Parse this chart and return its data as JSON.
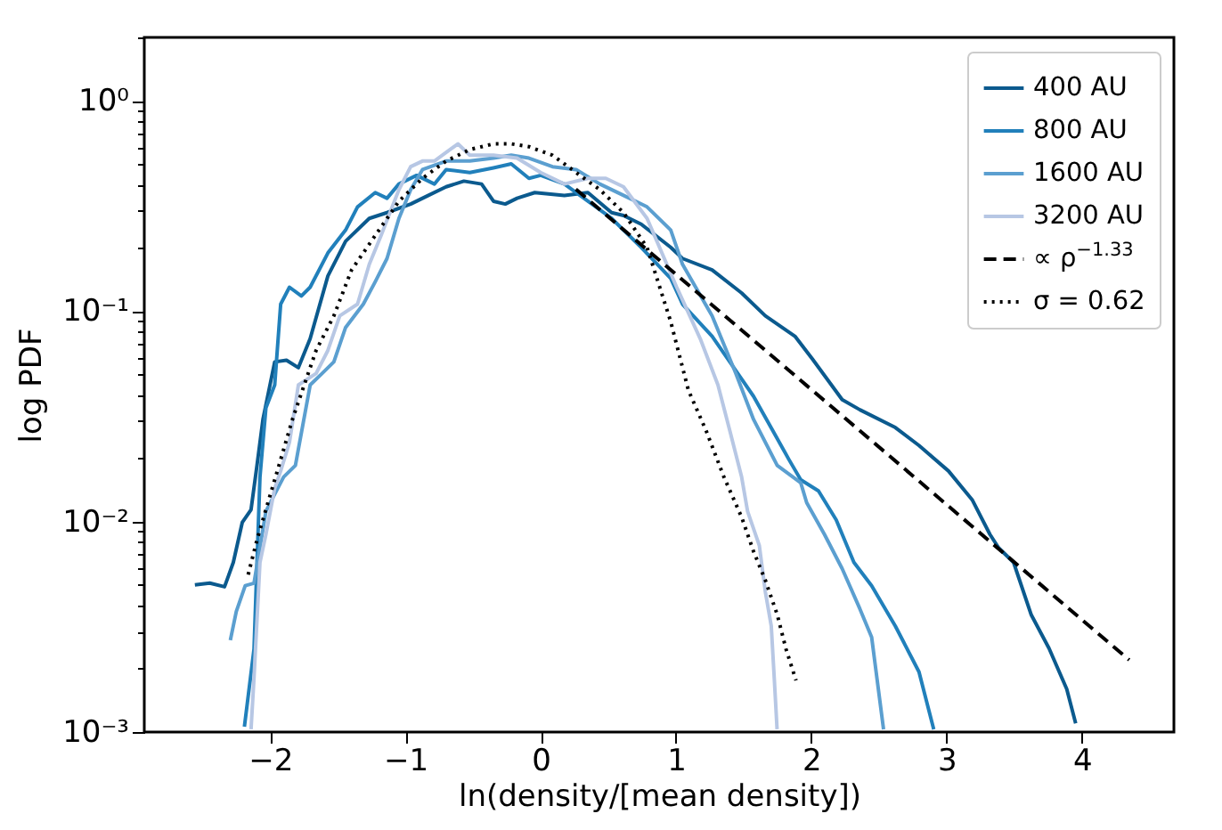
{
  "chart_data": {
    "type": "line",
    "xlabel": "ln(density/[mean density])",
    "ylabel": "log PDF",
    "log": "y",
    "legend": "top right",
    "grid": false,
    "xlim": [
      -2.93,
      4.68
    ],
    "xticks": [
      {
        "value": -2,
        "label": "−2"
      },
      {
        "value": -1,
        "label": "−1"
      },
      0,
      1,
      2,
      3,
      4
    ],
    "ylim": [
      0.001,
      2
    ],
    "yticks": [
      {
        "value": 0.001,
        "label": "10⁻³"
      },
      {
        "value": 0.002,
        "label": null
      },
      {
        "value": 0.003,
        "label": null
      },
      {
        "value": 0.004,
        "label": null
      },
      {
        "value": 0.005,
        "label": null
      },
      {
        "value": 0.006,
        "label": null
      },
      {
        "value": 0.007,
        "label": null
      },
      {
        "value": 0.008,
        "label": null
      },
      {
        "value": 0.009,
        "label": null
      },
      {
        "value": 0.01,
        "label": "10⁻²"
      },
      {
        "value": 0.02,
        "label": null
      },
      {
        "value": 0.03,
        "label": null
      },
      {
        "value": 0.04,
        "label": null
      },
      {
        "value": 0.05,
        "label": null
      },
      {
        "value": 0.06,
        "label": null
      },
      {
        "value": 0.07,
        "label": null
      },
      {
        "value": 0.08,
        "label": null
      },
      {
        "value": 0.09,
        "label": null
      },
      {
        "value": 0.1,
        "label": "10⁻¹"
      },
      {
        "value": 0.2,
        "label": null
      },
      {
        "value": 0.3,
        "label": null
      },
      {
        "value": 0.4,
        "label": null
      },
      {
        "value": 0.5,
        "label": null
      },
      {
        "value": 0.6,
        "label": null
      },
      {
        "value": 0.7,
        "label": null
      },
      {
        "value": 0.8,
        "label": null
      },
      {
        "value": 0.9,
        "label": null
      },
      {
        "value": 1,
        "label": "10⁰"
      },
      {
        "value": 2,
        "label": null
      }
    ],
    "series": [
      {
        "name": "400 AU",
        "color": "#0b5a8e",
        "line_style": "solid",
        "x": [
          -2.556,
          -2.446,
          -2.337,
          -2.272,
          -2.206,
          -2.141,
          -2.097,
          -2.053,
          -1.966,
          -1.879,
          -1.791,
          -1.704,
          -1.573,
          -1.442,
          -1.267,
          -1.136,
          -0.961,
          -0.83,
          -0.699,
          -0.568,
          -0.437,
          -0.349,
          -0.262,
          -0.175,
          -0.044,
          0.175,
          0.349,
          0.524,
          0.612,
          0.743,
          0.961,
          1.048,
          1.267,
          1.485,
          1.66,
          1.879,
          2.01,
          2.228,
          2.359,
          2.621,
          2.796,
          3.014,
          3.189,
          3.32,
          3.385,
          3.495,
          3.626,
          3.757,
          3.888,
          3.954
        ],
        "values": [
          0.005,
          0.0051,
          0.0049,
          0.0064,
          0.0099,
          0.0114,
          0.0185,
          0.0306,
          0.0574,
          0.0585,
          0.0539,
          0.074,
          0.147,
          0.215,
          0.276,
          0.294,
          0.323,
          0.355,
          0.39,
          0.415,
          0.402,
          0.333,
          0.323,
          0.344,
          0.366,
          0.355,
          0.366,
          0.294,
          0.285,
          0.259,
          0.201,
          0.178,
          0.157,
          0.122,
          0.095,
          0.076,
          0.059,
          0.038,
          0.034,
          0.028,
          0.023,
          0.0174,
          0.0127,
          0.0087,
          0.0075,
          0.0064,
          0.0036,
          0.0025,
          0.0016,
          0.0011
        ]
      },
      {
        "name": "800 AU",
        "color": "#2180bb",
        "line_style": "solid",
        "x": [
          -2.19,
          -2.119,
          -2.075,
          -2.031,
          -1.966,
          -1.922,
          -1.857,
          -1.769,
          -1.704,
          -1.573,
          -1.442,
          -1.354,
          -1.223,
          -1.136,
          -1.048,
          -0.917,
          -0.786,
          -0.699,
          -0.524,
          -0.349,
          -0.218,
          -0.087,
          0,
          0.175,
          0.349,
          0.524,
          0.743,
          0.961,
          1.048,
          1.267,
          1.442,
          1.573,
          1.704,
          1.835,
          1.922,
          2.053,
          2.184,
          2.315,
          2.446,
          2.621,
          2.796,
          2.905
        ],
        "values": [
          0.00106,
          0.00248,
          0.0163,
          0.0347,
          0.0446,
          0.108,
          0.13,
          0.118,
          0.13,
          0.189,
          0.243,
          0.313,
          0.366,
          0.344,
          0.402,
          0.442,
          0.402,
          0.471,
          0.456,
          0.48,
          0.501,
          0.428,
          0.442,
          0.402,
          0.333,
          0.276,
          0.201,
          0.143,
          0.108,
          0.076,
          0.0522,
          0.0394,
          0.0279,
          0.0197,
          0.0158,
          0.014,
          0.0102,
          0.0064,
          0.00496,
          0.00319,
          0.00193,
          0.00103
        ]
      },
      {
        "name": "1600 AU",
        "color": "#5b9fd0",
        "line_style": "solid",
        "x": [
          -2.294,
          -2.25,
          -2.184,
          -2.119,
          -2.031,
          -1.966,
          -1.9,
          -1.813,
          -1.704,
          -1.616,
          -1.529,
          -1.442,
          -1.311,
          -1.223,
          -1.136,
          -1.048,
          -0.961,
          -0.874,
          -0.699,
          -0.524,
          -0.349,
          -0.218,
          -0.087,
          0.087,
          0.262,
          0.437,
          0.612,
          0.786,
          0.961,
          1.048,
          1.267,
          1.442,
          1.573,
          1.748,
          1.922,
          1.966,
          2.097,
          2.228,
          2.359,
          2.446,
          2.534
        ],
        "values": [
          0.00273,
          0.00374,
          0.00496,
          0.0051,
          0.0112,
          0.0135,
          0.0163,
          0.0185,
          0.0446,
          0.0506,
          0.0574,
          0.0837,
          0.108,
          0.138,
          0.178,
          0.276,
          0.378,
          0.471,
          0.517,
          0.517,
          0.534,
          0.551,
          0.534,
          0.486,
          0.471,
          0.402,
          0.355,
          0.313,
          0.243,
          0.167,
          0.095,
          0.0506,
          0.0306,
          0.0185,
          0.0153,
          0.0123,
          0.0087,
          0.00598,
          0.00385,
          0.00282,
          0.00103
        ]
      },
      {
        "name": "3200 AU",
        "color": "#b7c7e4",
        "line_style": "solid",
        "x": [
          -2.141,
          -2.119,
          -2.075,
          -2.031,
          -1.966,
          -1.922,
          -1.857,
          -1.791,
          -1.66,
          -1.573,
          -1.485,
          -1.354,
          -1.267,
          -1.18,
          -1.048,
          -0.961,
          -0.874,
          -0.786,
          -0.699,
          -0.612,
          -0.524,
          -0.349,
          -0.175,
          0,
          0.175,
          0.349,
          0.481,
          0.612,
          0.786,
          1.005,
          1.179,
          1.31,
          1.398,
          1.485,
          1.529,
          1.616,
          1.66,
          1.704,
          1.726,
          1.747
        ],
        "values": [
          0.00103,
          0.00181,
          0.0064,
          0.0087,
          0.0144,
          0.0174,
          0.0238,
          0.0446,
          0.0506,
          0.0651,
          0.095,
          0.108,
          0.167,
          0.229,
          0.378,
          0.486,
          0.517,
          0.517,
          0.568,
          0.624,
          0.551,
          0.551,
          0.534,
          0.456,
          0.402,
          0.428,
          0.428,
          0.39,
          0.276,
          0.13,
          0.074,
          0.0446,
          0.027,
          0.0163,
          0.0112,
          0.00769,
          0.00465,
          0.00319,
          0.00181,
          0.00103
        ]
      },
      {
        "name": "∝ ρ$^{−1.33}$",
        "color": "#000000",
        "line_style": "dashed",
        "x": [
          0.26,
          4.35
        ],
        "values": [
          0.38,
          0.0022
        ]
      },
      {
        "name": "σ = 0.62",
        "color": "#000000",
        "line_style": "dotted",
        "x": [
          -2.162,
          -2.097,
          -2.01,
          -1.922,
          -1.835,
          -1.748,
          -1.66,
          -1.529,
          -1.398,
          -1.223,
          -1.048,
          -0.874,
          -0.699,
          -0.524,
          -0.349,
          -0.218,
          -0.087,
          0.087,
          0.262,
          0.437,
          0.612,
          0.786,
          0.961,
          1.092,
          1.223,
          1.354,
          1.485,
          1.573,
          1.66,
          1.748,
          1.813,
          1.887
        ],
        "values": [
          0.0056,
          0.00819,
          0.0127,
          0.0197,
          0.0306,
          0.0446,
          0.0651,
          0.095,
          0.157,
          0.229,
          0.333,
          0.428,
          0.517,
          0.586,
          0.624,
          0.624,
          0.605,
          0.551,
          0.456,
          0.378,
          0.294,
          0.201,
          0.0891,
          0.042,
          0.027,
          0.0163,
          0.0105,
          0.00722,
          0.00527,
          0.00362,
          0.00248,
          0.00176
        ]
      }
    ]
  }
}
